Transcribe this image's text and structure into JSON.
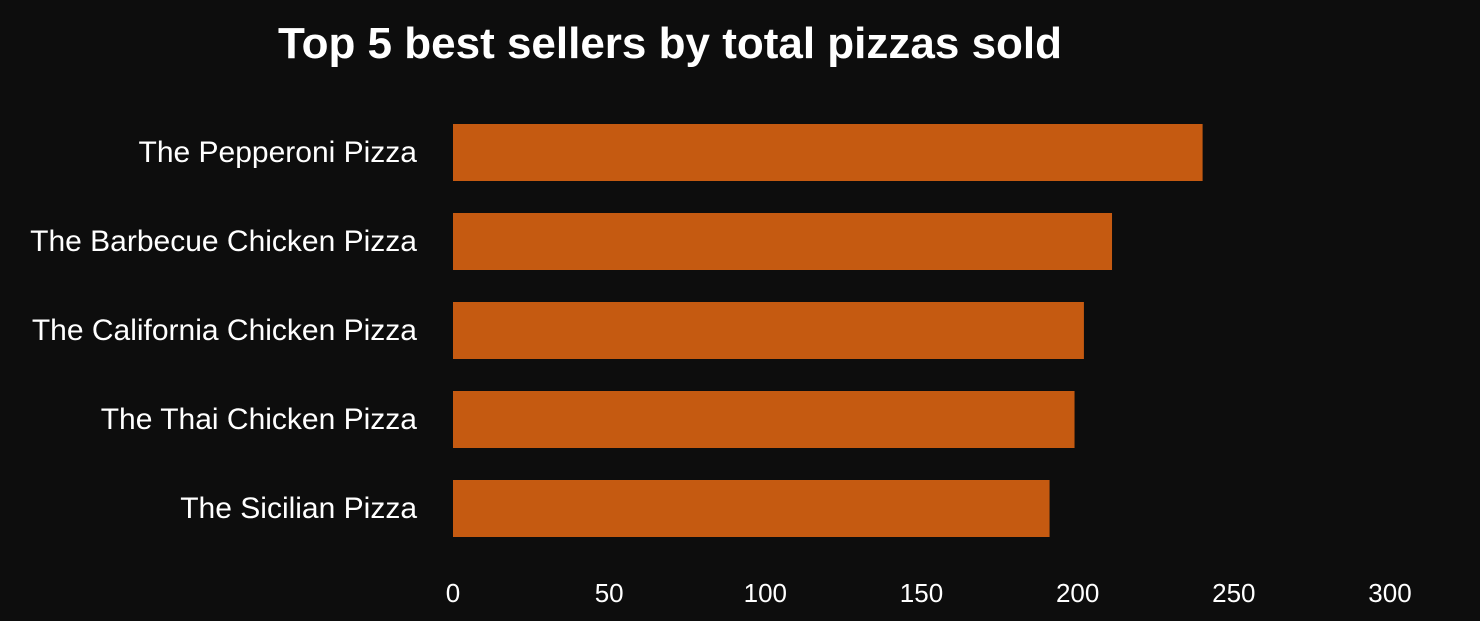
{
  "chart_data": {
    "type": "bar",
    "orientation": "horizontal",
    "title": "Top 5 best sellers by total pizzas sold",
    "categories": [
      "The Pepperoni Pizza",
      "The Barbecue Chicken Pizza",
      "The California Chicken Pizza",
      "The Thai Chicken Pizza",
      "The Sicilian Pizza"
    ],
    "values": [
      240,
      211,
      202,
      199,
      191
    ],
    "xlim": [
      0,
      300
    ],
    "xticks": [
      "0",
      "50",
      "100",
      "150",
      "200",
      "250",
      "300"
    ],
    "bar_color": "#c55a11",
    "background_color": "#0d0d0d",
    "grid": false,
    "legend": "none"
  }
}
